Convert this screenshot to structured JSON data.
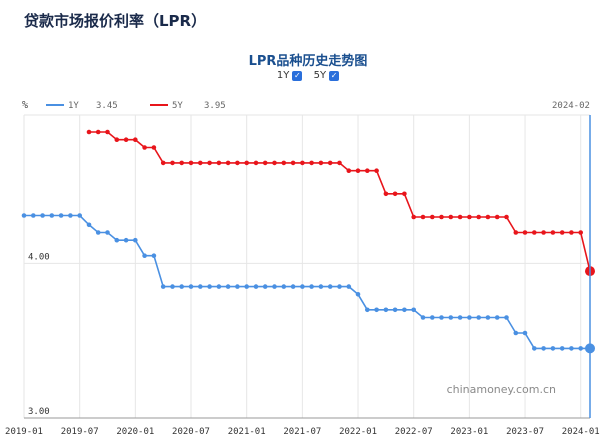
{
  "page": {
    "title": "贷款市场报价利率（LPR）"
  },
  "toggles": [
    {
      "label": "1Y",
      "checked": true
    },
    {
      "label": "5Y",
      "checked": true
    }
  ],
  "legend_latest_date": "2024-02",
  "watermark": "chinamoney.com.cn",
  "colors": {
    "series_1y": "#4a90e2",
    "series_5y": "#e8151b",
    "grid": "#e6e6e6",
    "cursor": "#4a90e2"
  },
  "chart_data": {
    "type": "line",
    "title": "LPR品种历史走势图",
    "ylabel": "%",
    "ylim": [
      3.0,
      4.96
    ],
    "yticks": [
      3.0,
      4.0
    ],
    "ytick_labels": [
      "3.00",
      "4.00"
    ],
    "x_tick_labels": [
      "2019-01",
      "2019-07",
      "2020-01",
      "2020-07",
      "2021-01",
      "2021-07",
      "2022-01",
      "2022-07",
      "2023-01",
      "2023-07",
      "2024-01"
    ],
    "x_tick_month_index": [
      0,
      6,
      12,
      18,
      24,
      30,
      36,
      42,
      48,
      54,
      60
    ],
    "x_start": "2019-01",
    "x_end": "2024-02",
    "grid": true,
    "legend_position": "top-left",
    "series": [
      {
        "name": "1Y",
        "latest": "3.45",
        "start": "2019-01",
        "values": [
          4.31,
          4.31,
          4.31,
          4.31,
          4.31,
          4.31,
          4.31,
          4.25,
          4.2,
          4.2,
          4.15,
          4.15,
          4.15,
          4.05,
          4.05,
          3.85,
          3.85,
          3.85,
          3.85,
          3.85,
          3.85,
          3.85,
          3.85,
          3.85,
          3.85,
          3.85,
          3.85,
          3.85,
          3.85,
          3.85,
          3.85,
          3.85,
          3.85,
          3.85,
          3.85,
          3.85,
          3.8,
          3.7,
          3.7,
          3.7,
          3.7,
          3.7,
          3.7,
          3.65,
          3.65,
          3.65,
          3.65,
          3.65,
          3.65,
          3.65,
          3.65,
          3.65,
          3.65,
          3.55,
          3.55,
          3.45,
          3.45,
          3.45,
          3.45,
          3.45,
          3.45,
          3.45
        ]
      },
      {
        "name": "5Y",
        "latest": "3.95",
        "start": "2019-08",
        "values": [
          4.85,
          4.85,
          4.85,
          4.8,
          4.8,
          4.8,
          4.75,
          4.75,
          4.65,
          4.65,
          4.65,
          4.65,
          4.65,
          4.65,
          4.65,
          4.65,
          4.65,
          4.65,
          4.65,
          4.65,
          4.65,
          4.65,
          4.65,
          4.65,
          4.65,
          4.65,
          4.65,
          4.65,
          4.6,
          4.6,
          4.6,
          4.6,
          4.45,
          4.45,
          4.45,
          4.3,
          4.3,
          4.3,
          4.3,
          4.3,
          4.3,
          4.3,
          4.3,
          4.3,
          4.3,
          4.3,
          4.2,
          4.2,
          4.2,
          4.2,
          4.2,
          4.2,
          4.2,
          4.2,
          3.95
        ]
      }
    ]
  }
}
